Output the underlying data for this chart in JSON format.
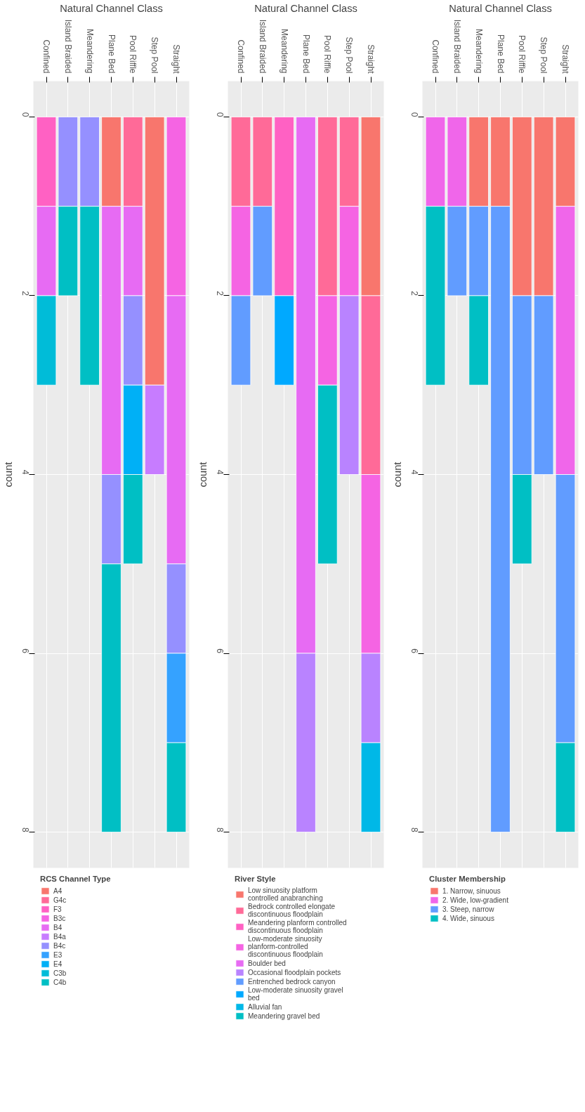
{
  "chart_data": [
    {
      "type": "bar",
      "stacked": true,
      "xlabel": "Natural Channel Class",
      "ylabel": "count",
      "legend_title": "RCS Channel Type",
      "legend": "bottom",
      "grid": true,
      "categories": [
        "Confined",
        "Island Braided",
        "Meandering",
        "Plane Bed",
        "Pool Riffle",
        "Step Pool",
        "Straight"
      ],
      "ylim": [
        8.4,
        -0.4
      ],
      "yticks": [
        0,
        2,
        4,
        6,
        8
      ],
      "series": [
        {
          "name": "A4",
          "color": "#F8766D",
          "values": [
            null,
            null,
            null,
            1,
            null,
            3,
            null
          ]
        },
        {
          "name": "G4c",
          "color": "#FF6A98",
          "values": [
            null,
            null,
            null,
            null,
            1,
            null,
            null
          ]
        },
        {
          "name": "F3",
          "color": "#FF61C3",
          "values": [
            1,
            null,
            null,
            null,
            null,
            null,
            null
          ]
        },
        {
          "name": "B3c",
          "color": "#F564E3",
          "values": [
            null,
            null,
            null,
            null,
            null,
            null,
            2
          ]
        },
        {
          "name": "B4",
          "color": "#E76BF3",
          "values": [
            1,
            null,
            null,
            3,
            1,
            null,
            3
          ]
        },
        {
          "name": "B4a",
          "color": "#C77CFF",
          "values": [
            null,
            null,
            null,
            null,
            null,
            1,
            null
          ]
        },
        {
          "name": "B4c",
          "color": "#9590FF",
          "values": [
            null,
            1,
            1,
            1,
            1,
            null,
            1
          ]
        },
        {
          "name": "E3",
          "color": "#35A2FF",
          "values": [
            null,
            null,
            null,
            null,
            null,
            null,
            1
          ]
        },
        {
          "name": "E4",
          "color": "#00B0F6",
          "values": [
            null,
            null,
            null,
            null,
            1,
            null,
            null
          ]
        },
        {
          "name": "C3b",
          "color": "#00BCD8",
          "values": [
            1,
            null,
            null,
            null,
            null,
            null,
            null
          ]
        },
        {
          "name": "C4b",
          "color": "#00BFC4",
          "values": [
            null,
            1,
            2,
            3,
            1,
            null,
            1
          ]
        }
      ]
    },
    {
      "type": "bar",
      "stacked": true,
      "xlabel": "Natural Channel Class",
      "ylabel": "count",
      "legend_title": "River Style",
      "legend": "bottom",
      "grid": true,
      "categories": [
        "Confined",
        "Island Braided",
        "Meandering",
        "Plane Bed",
        "Pool Riffle",
        "Step Pool",
        "Straight"
      ],
      "ylim": [
        8.4,
        -0.4
      ],
      "yticks": [
        0,
        2,
        4,
        6,
        8
      ],
      "series": [
        {
          "name": "Low sinuosity platform controlled anabranching",
          "color": "#F8766D",
          "values": [
            null,
            null,
            null,
            null,
            null,
            null,
            2
          ]
        },
        {
          "name": "Bedrock controlled elongate discontinuous floodplain",
          "color": "#FF6A98",
          "values": [
            1,
            1,
            null,
            null,
            2,
            1,
            2
          ]
        },
        {
          "name": "Meandering planform controlled discontinuous floodplain",
          "color": "#FF61C3",
          "values": [
            null,
            null,
            2,
            null,
            null,
            null,
            null
          ]
        },
        {
          "name": "Low-moderate sinuosity planform-controlled discontinuous floodplain",
          "color": "#F564E3",
          "values": [
            1,
            null,
            null,
            null,
            1,
            1,
            2
          ]
        },
        {
          "name": "Boulder bed",
          "color": "#E76BF3",
          "values": [
            null,
            null,
            null,
            6,
            null,
            null,
            null
          ]
        },
        {
          "name": "Occasional floodplain pockets",
          "color": "#B983FF",
          "values": [
            null,
            null,
            null,
            2,
            null,
            2,
            1
          ]
        },
        {
          "name": "Entrenched bedrock canyon",
          "color": "#619CFF",
          "values": [
            1,
            1,
            null,
            null,
            null,
            null,
            null
          ]
        },
        {
          "name": "Low-moderate sinuosity gravel bed",
          "color": "#00A9FF",
          "values": [
            null,
            null,
            1,
            null,
            null,
            null,
            null
          ]
        },
        {
          "name": "Alluvial fan",
          "color": "#00B8E7",
          "values": [
            null,
            null,
            null,
            null,
            null,
            null,
            1
          ]
        },
        {
          "name": "Meandering gravel bed",
          "color": "#00BFC4",
          "values": [
            null,
            null,
            null,
            null,
            2,
            null,
            null
          ]
        }
      ]
    },
    {
      "type": "bar",
      "stacked": true,
      "xlabel": "Natural Channel Class",
      "ylabel": "count",
      "legend_title": "Cluster Membership",
      "legend": "bottom",
      "grid": true,
      "categories": [
        "Confined",
        "Island Braided",
        "Meandering",
        "Plane Bed",
        "Pool Riffle",
        "Step Pool",
        "Straight"
      ],
      "ylim": [
        8.4,
        -0.4
      ],
      "yticks": [
        0,
        2,
        4,
        6,
        8
      ],
      "series": [
        {
          "name": "1. Narrow, sinuous",
          "color": "#F8766D",
          "values": [
            null,
            null,
            1,
            1,
            2,
            2,
            1
          ]
        },
        {
          "name": "2. Wide, low-gradient",
          "color": "#F066EA",
          "values": [
            1,
            1,
            null,
            null,
            null,
            null,
            3
          ]
        },
        {
          "name": "3. Steep, narrow",
          "color": "#619CFF",
          "values": [
            null,
            1,
            1,
            7,
            2,
            2,
            3
          ]
        },
        {
          "name": "4. Wide, sinuous",
          "color": "#00BFC4",
          "values": [
            2,
            null,
            1,
            null,
            1,
            null,
            1
          ]
        }
      ]
    }
  ]
}
